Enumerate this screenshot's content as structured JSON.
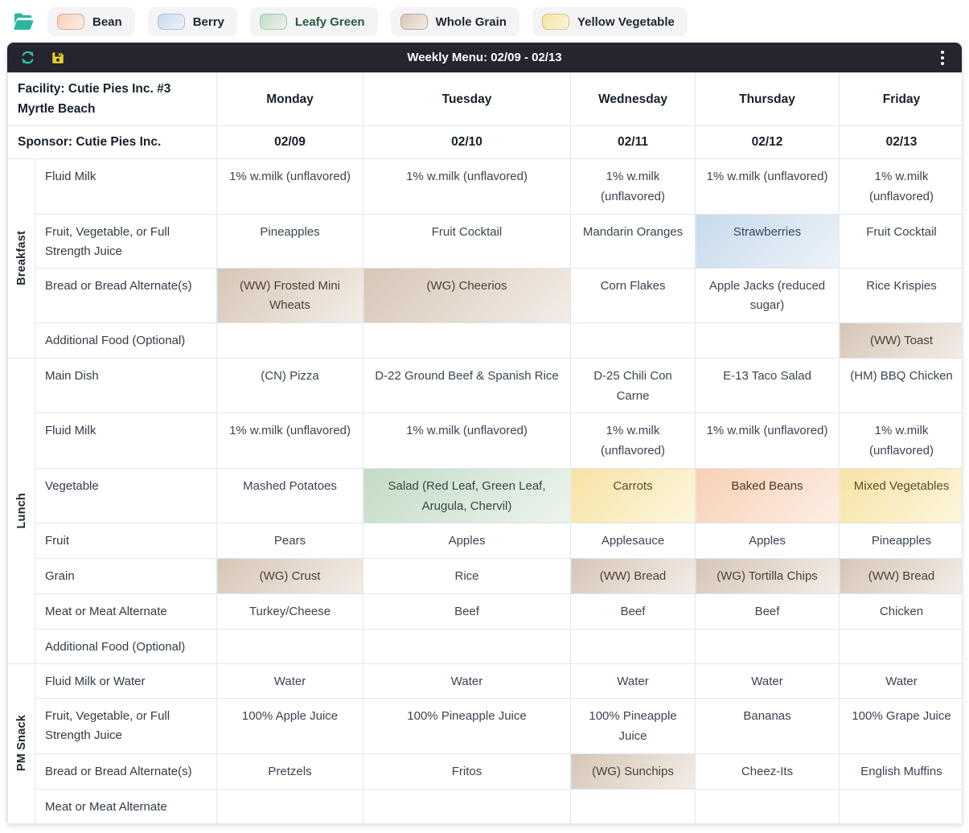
{
  "legend": {
    "items": [
      {
        "key": "bean",
        "label": "Bean"
      },
      {
        "key": "berry",
        "label": "Berry"
      },
      {
        "key": "leafy_green",
        "label": "Leafy Green"
      },
      {
        "key": "whole_grain",
        "label": "Whole Grain"
      },
      {
        "key": "yellow_vegetable",
        "label": "Yellow Vegetable"
      }
    ]
  },
  "highlight_colors": {
    "bean": {
      "from": "#f7d0b5",
      "to": "#fdeee4"
    },
    "berry": {
      "from": "#c7daeb",
      "to": "#edf3f9"
    },
    "leafy_green": {
      "from": "#c3dbc6",
      "to": "#edf4ed"
    },
    "whole_grain": {
      "from": "#d6c6b7",
      "to": "#f3ede7"
    },
    "yellow_vegetable": {
      "from": "#f6e2a4",
      "to": "#fdf6dd"
    }
  },
  "toolbar": {
    "title": "Weekly Menu: 02/09 - 02/13",
    "refresh_icon_color": "#2ec4b0",
    "save_icon_color": "#e5d22e",
    "bar_color": "#26252f",
    "folder_icon_color": "#2cb5a2"
  },
  "table": {
    "facility_label": "Facility: Cutie Pies Inc. #3 Myrtle Beach",
    "sponsor_label": "Sponsor: Cutie Pies Inc.",
    "days": [
      "Monday",
      "Tuesday",
      "Wednesday",
      "Thursday",
      "Friday"
    ],
    "dates": [
      "02/09",
      "02/10",
      "02/11",
      "02/12",
      "02/13"
    ],
    "sections": [
      {
        "name": "Breakfast",
        "rows": [
          {
            "label": "Fluid Milk",
            "cells": [
              {
                "text": "1% w.milk (unflavored)"
              },
              {
                "text": "1% w.milk (unflavored)"
              },
              {
                "text": "1% w.milk (unflavored)"
              },
              {
                "text": "1% w.milk (unflavored)"
              },
              {
                "text": "1% w.milk (unflavored)"
              }
            ]
          },
          {
            "label": "Fruit, Vegetable, or Full Strength Juice",
            "cells": [
              {
                "text": "Pineapples"
              },
              {
                "text": "Fruit Cocktail"
              },
              {
                "text": "Mandarin Oranges"
              },
              {
                "text": "Strawberries",
                "tag": "berry"
              },
              {
                "text": "Fruit Cocktail"
              }
            ]
          },
          {
            "label": "Bread or Bread Alternate(s)",
            "cells": [
              {
                "text": "(WW) Frosted Mini Wheats",
                "tag": "whole_grain"
              },
              {
                "text": "(WG) Cheerios",
                "tag": "whole_grain"
              },
              {
                "text": "Corn Flakes"
              },
              {
                "text": "Apple Jacks (reduced sugar)"
              },
              {
                "text": "Rice Krispies"
              }
            ]
          },
          {
            "label": "Additional Food (Optional)",
            "cells": [
              {
                "text": ""
              },
              {
                "text": ""
              },
              {
                "text": ""
              },
              {
                "text": ""
              },
              {
                "text": "(WW) Toast",
                "tag": "whole_grain"
              }
            ]
          }
        ]
      },
      {
        "name": "Lunch",
        "rows": [
          {
            "label": "Main Dish",
            "cells": [
              {
                "text": "(CN) Pizza"
              },
              {
                "text": "D-22 Ground Beef & Spanish Rice"
              },
              {
                "text": "D-25 Chili Con Carne"
              },
              {
                "text": "E-13 Taco Salad"
              },
              {
                "text": "(HM) BBQ Chicken"
              }
            ]
          },
          {
            "label": "Fluid Milk",
            "cells": [
              {
                "text": "1% w.milk (unflavored)"
              },
              {
                "text": "1% w.milk (unflavored)"
              },
              {
                "text": "1% w.milk (unflavored)"
              },
              {
                "text": "1% w.milk (unflavored)"
              },
              {
                "text": "1% w.milk (unflavored)"
              }
            ]
          },
          {
            "label": "Vegetable",
            "cells": [
              {
                "text": "Mashed Potatoes"
              },
              {
                "text": "Salad (Red Leaf, Green Leaf, Arugula, Chervil)",
                "tag": "leafy_green"
              },
              {
                "text": "Carrots",
                "tag": "yellow_vegetable"
              },
              {
                "text": "Baked Beans",
                "tag": "bean"
              },
              {
                "text": "Mixed Vegetables",
                "tag": "yellow_vegetable"
              }
            ]
          },
          {
            "label": "Fruit",
            "cells": [
              {
                "text": "Pears"
              },
              {
                "text": "Apples"
              },
              {
                "text": "Applesauce"
              },
              {
                "text": "Apples"
              },
              {
                "text": "Pineapples"
              }
            ]
          },
          {
            "label": "Grain",
            "cells": [
              {
                "text": "(WG) Crust",
                "tag": "whole_grain"
              },
              {
                "text": "Rice"
              },
              {
                "text": "(WW) Bread",
                "tag": "whole_grain"
              },
              {
                "text": "(WG) Tortilla Chips",
                "tag": "whole_grain"
              },
              {
                "text": "(WW) Bread",
                "tag": "whole_grain"
              }
            ]
          },
          {
            "label": "Meat or Meat Alternate",
            "cells": [
              {
                "text": "Turkey/Cheese"
              },
              {
                "text": "Beef"
              },
              {
                "text": "Beef"
              },
              {
                "text": "Beef"
              },
              {
                "text": "Chicken"
              }
            ]
          },
          {
            "label": "Additional Food (Optional)",
            "cells": [
              {
                "text": ""
              },
              {
                "text": ""
              },
              {
                "text": ""
              },
              {
                "text": ""
              },
              {
                "text": ""
              }
            ]
          }
        ]
      },
      {
        "name": "PM Snack",
        "rows": [
          {
            "label": "Fluid Milk or Water",
            "cells": [
              {
                "text": "Water"
              },
              {
                "text": "Water"
              },
              {
                "text": "Water"
              },
              {
                "text": "Water"
              },
              {
                "text": "Water"
              }
            ]
          },
          {
            "label": "Fruit, Vegetable, or Full Strength Juice",
            "cells": [
              {
                "text": "100% Apple Juice"
              },
              {
                "text": "100% Pineapple Juice"
              },
              {
                "text": "100% Pineapple Juice"
              },
              {
                "text": "Bananas"
              },
              {
                "text": "100% Grape Juice"
              }
            ]
          },
          {
            "label": "Bread or Bread Alternate(s)",
            "cells": [
              {
                "text": "Pretzels"
              },
              {
                "text": "Fritos"
              },
              {
                "text": "(WG) Sunchips",
                "tag": "whole_grain"
              },
              {
                "text": "Cheez-Its"
              },
              {
                "text": "English Muffins"
              }
            ]
          },
          {
            "label": "Meat or Meat Alternate",
            "cells": [
              {
                "text": ""
              },
              {
                "text": ""
              },
              {
                "text": ""
              },
              {
                "text": ""
              },
              {
                "text": ""
              }
            ]
          }
        ]
      }
    ]
  }
}
